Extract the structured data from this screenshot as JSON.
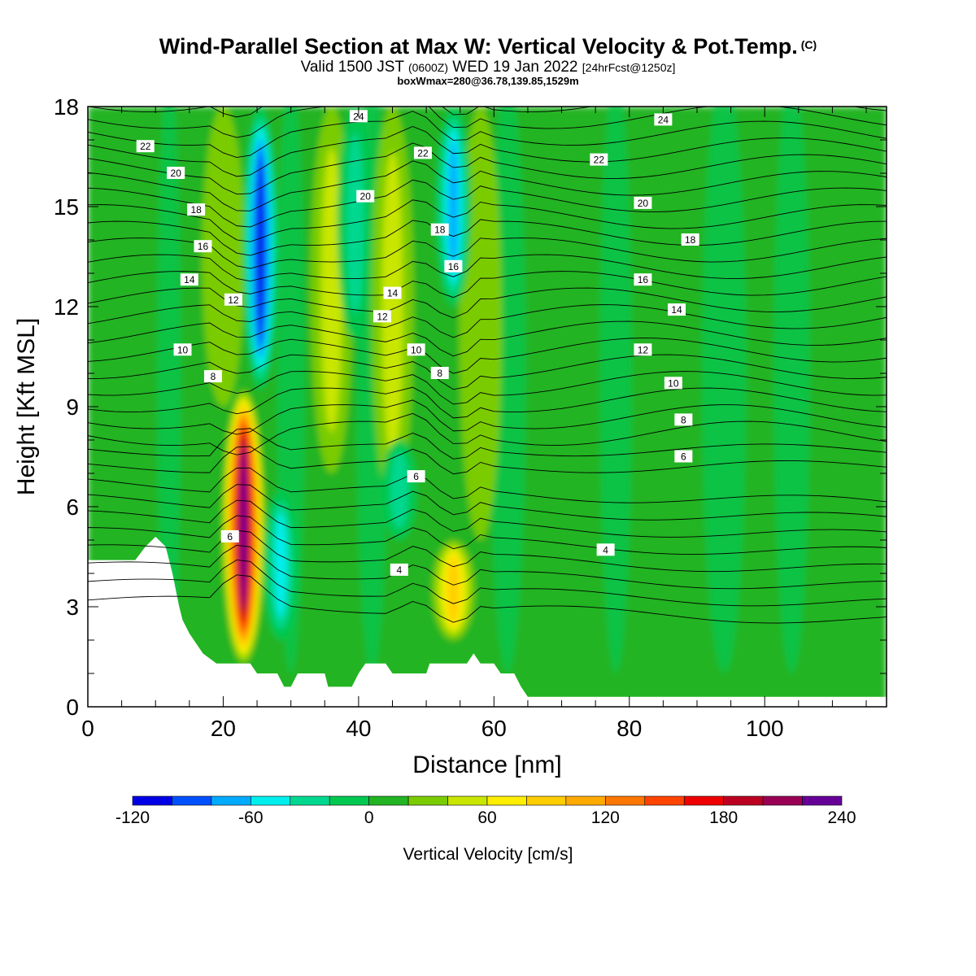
{
  "header": {
    "title": "Wind-Parallel Section at Max W: Vertical Velocity & Pot.Temp.",
    "copyright": "(C)",
    "valid_prefix": "Valid 1500 JST",
    "valid_utc": "(0600Z)",
    "valid_date": "WED 19 Jan 2022",
    "forecast": "[24hrFcst@1250z]",
    "boxwmax": "boxWmax=280@36.78,139.85,1529m"
  },
  "chart_data": {
    "type": "heatmap",
    "title": "Wind-Parallel Section at Max W: Vertical Velocity & Pot.Temp.",
    "xlabel": "Distance [nm]",
    "ylabel": "Height [Kft MSL]",
    "xlim": [
      0,
      118
    ],
    "ylim": [
      0,
      18
    ],
    "x_ticks": [
      0,
      20,
      40,
      60,
      80,
      100
    ],
    "y_ticks": [
      0,
      3,
      6,
      9,
      12,
      15,
      18
    ],
    "colorbar": {
      "title": "Vertical Velocity [cm/s]",
      "tick_labels": [
        "-120",
        "-60",
        "0",
        "60",
        "120",
        "180",
        "240"
      ],
      "min": -120,
      "max": 240,
      "step": 20,
      "colors": [
        "#0000e6",
        "#0050ff",
        "#00aaff",
        "#00eeee",
        "#00d890",
        "#00c850",
        "#22b422",
        "#7acc00",
        "#c8e600",
        "#ffee00",
        "#ffcc00",
        "#ffaa00",
        "#ff7700",
        "#ff4400",
        "#ee0000",
        "#bb0022",
        "#990055",
        "#660099"
      ]
    },
    "background_value": 5,
    "updrafts": [
      {
        "x": 23,
        "z_min": 1.3,
        "z_max": 9.5,
        "peak": 230,
        "note": "max W column"
      },
      {
        "x": 54,
        "z_min": 2.0,
        "z_max": 5.0,
        "peak": 80
      },
      {
        "x": 58,
        "z_min": 5.0,
        "z_max": 18,
        "peak": 30
      },
      {
        "x": 36,
        "z_min": 7.0,
        "z_max": 18,
        "peak": 50
      },
      {
        "x": 45,
        "z_min": 6.0,
        "z_max": 18,
        "peak": 45
      },
      {
        "x": 20,
        "z_min": 9.0,
        "z_max": 18,
        "peak": 30
      }
    ],
    "downdrafts": [
      {
        "x": 25.5,
        "z_min": 9.5,
        "z_max": 18,
        "peak": -120,
        "note": "strongest downdraft"
      },
      {
        "x": 28.5,
        "z_min": 2.0,
        "z_max": 6.5,
        "peak": -60
      },
      {
        "x": 39.5,
        "z_min": 11.0,
        "z_max": 18,
        "peak": -50
      },
      {
        "x": 54.0,
        "z_min": 12.0,
        "z_max": 18,
        "peak": -80
      },
      {
        "x": 46.0,
        "z_min": 5.0,
        "z_max": 8.0,
        "peak": -40
      }
    ],
    "terrain_profile": [
      [
        0,
        4.4
      ],
      [
        7,
        4.4
      ],
      [
        8.5,
        4.8
      ],
      [
        10,
        5.1
      ],
      [
        11.5,
        4.8
      ],
      [
        12,
        4.4
      ],
      [
        12.5,
        4.0
      ],
      [
        13,
        3.5
      ],
      [
        13.5,
        3.0
      ],
      [
        14,
        2.6
      ],
      [
        15,
        2.2
      ],
      [
        16,
        1.9
      ],
      [
        17,
        1.6
      ],
      [
        19,
        1.3
      ],
      [
        24,
        1.3
      ],
      [
        25,
        1.0
      ],
      [
        28,
        1.0
      ],
      [
        29,
        0.6
      ],
      [
        30,
        0.6
      ],
      [
        31,
        1.0
      ],
      [
        35,
        1.0
      ],
      [
        35.5,
        0.6
      ],
      [
        39,
        0.6
      ],
      [
        40,
        1.0
      ],
      [
        41,
        1.3
      ],
      [
        44,
        1.3
      ],
      [
        45,
        1.0
      ],
      [
        50,
        1.0
      ],
      [
        50.5,
        1.3
      ],
      [
        56,
        1.3
      ],
      [
        57,
        1.6
      ],
      [
        58,
        1.3
      ],
      [
        60,
        1.3
      ],
      [
        61,
        1.0
      ],
      [
        63,
        1.0
      ],
      [
        64,
        0.6
      ],
      [
        65,
        0.3
      ],
      [
        118,
        0.3
      ]
    ],
    "theta_labels": [
      {
        "value": "22",
        "x": 8.5,
        "z": 16.8
      },
      {
        "value": "20",
        "x": 13,
        "z": 16.0
      },
      {
        "value": "18",
        "x": 16,
        "z": 14.9
      },
      {
        "value": "16",
        "x": 17,
        "z": 13.8
      },
      {
        "value": "14",
        "x": 15,
        "z": 12.8
      },
      {
        "value": "12",
        "x": 21.5,
        "z": 12.2
      },
      {
        "value": "10",
        "x": 14,
        "z": 10.7
      },
      {
        "value": "8",
        "x": 18.5,
        "z": 9.9
      },
      {
        "value": "24",
        "x": 40,
        "z": 17.7
      },
      {
        "value": "22",
        "x": 49.5,
        "z": 16.6
      },
      {
        "value": "20",
        "x": 41,
        "z": 15.3
      },
      {
        "value": "18",
        "x": 52,
        "z": 14.3
      },
      {
        "value": "16",
        "x": 54,
        "z": 13.2
      },
      {
        "value": "14",
        "x": 45,
        "z": 12.4
      },
      {
        "value": "12",
        "x": 43.5,
        "z": 11.7
      },
      {
        "value": "10",
        "x": 48.5,
        "z": 10.7
      },
      {
        "value": "8",
        "x": 52,
        "z": 10.0
      },
      {
        "value": "6",
        "x": 48.5,
        "z": 6.9
      },
      {
        "value": "4",
        "x": 46,
        "z": 4.1
      },
      {
        "value": "6",
        "x": 21,
        "z": 5.1
      },
      {
        "value": "24",
        "x": 85,
        "z": 17.6
      },
      {
        "value": "22",
        "x": 75.5,
        "z": 16.4
      },
      {
        "value": "20",
        "x": 82,
        "z": 15.1
      },
      {
        "value": "18",
        "x": 89,
        "z": 14.0
      },
      {
        "value": "16",
        "x": 82,
        "z": 12.8
      },
      {
        "value": "14",
        "x": 87,
        "z": 11.9
      },
      {
        "value": "12",
        "x": 82,
        "z": 10.7
      },
      {
        "value": "10",
        "x": 86.5,
        "z": 9.7
      },
      {
        "value": "8",
        "x": 88,
        "z": 8.6
      },
      {
        "value": "6",
        "x": 88,
        "z": 7.5
      },
      {
        "value": "4",
        "x": 76.5,
        "z": 4.7
      }
    ]
  }
}
